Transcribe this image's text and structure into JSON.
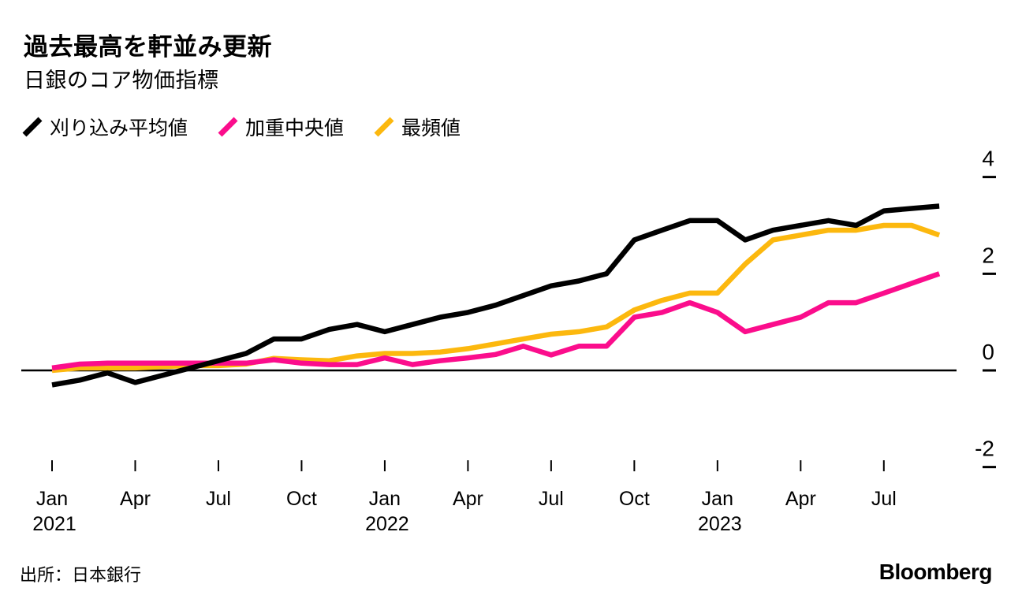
{
  "header": {
    "title": "過去最高を軒並み更新",
    "subtitle": "日銀のコア物価指標"
  },
  "legend": {
    "items": [
      {
        "key": "trimmed_mean",
        "label": "刈り込み平均値",
        "color": "#000000"
      },
      {
        "key": "weighted_median",
        "label": "加重中央値",
        "color": "#fb0d8c"
      },
      {
        "key": "mode",
        "label": "最頻値",
        "color": "#fcb80e"
      }
    ]
  },
  "footer": {
    "source": "出所：日本銀行",
    "brand": "Bloomberg"
  },
  "chart_data": {
    "type": "line",
    "title": "過去最高を軒並み更新",
    "subtitle": "日銀のコア物価指標",
    "x_unit": "month",
    "months": [
      "2021-01",
      "2021-02",
      "2021-03",
      "2021-04",
      "2021-05",
      "2021-06",
      "2021-07",
      "2021-08",
      "2021-09",
      "2021-10",
      "2021-11",
      "2021-12",
      "2022-01",
      "2022-02",
      "2022-03",
      "2022-04",
      "2022-05",
      "2022-06",
      "2022-07",
      "2022-08",
      "2022-09",
      "2022-10",
      "2022-11",
      "2022-12",
      "2023-01",
      "2023-02",
      "2023-03",
      "2023-04",
      "2023-05",
      "2023-06",
      "2023-07",
      "2023-08",
      "2023-09"
    ],
    "series": [
      {
        "key": "trimmed_mean",
        "name": "刈り込み平均値",
        "color": "#000000",
        "values": [
          -0.3,
          -0.2,
          -0.05,
          -0.25,
          -0.1,
          0.05,
          0.2,
          0.35,
          0.65,
          0.65,
          0.85,
          0.95,
          0.8,
          0.95,
          1.1,
          1.2,
          1.35,
          1.55,
          1.75,
          1.85,
          2.0,
          2.7,
          2.9,
          3.1,
          3.1,
          2.7,
          2.9,
          3.0,
          3.1,
          3.0,
          3.3,
          3.35,
          3.4
        ]
      },
      {
        "key": "weighted_median",
        "name": "加重中央値",
        "color": "#fb0d8c",
        "values": [
          0.05,
          0.13,
          0.15,
          0.15,
          0.15,
          0.15,
          0.15,
          0.15,
          0.22,
          0.15,
          0.12,
          0.12,
          0.26,
          0.12,
          0.2,
          0.26,
          0.33,
          0.5,
          0.32,
          0.5,
          0.5,
          1.1,
          1.2,
          1.4,
          1.2,
          0.8,
          0.95,
          1.1,
          1.4,
          1.4,
          1.6,
          1.8,
          2.0
        ]
      },
      {
        "key": "mode",
        "name": "最頻値",
        "color": "#fcb80e",
        "values": [
          0.0,
          0.05,
          0.05,
          0.05,
          0.08,
          0.1,
          0.1,
          0.13,
          0.25,
          0.22,
          0.2,
          0.3,
          0.35,
          0.35,
          0.38,
          0.45,
          0.55,
          0.65,
          0.75,
          0.8,
          0.9,
          1.25,
          1.45,
          1.6,
          1.6,
          2.2,
          2.7,
          2.8,
          2.9,
          2.9,
          3.0,
          3.0,
          2.8
        ]
      }
    ],
    "x_tick_labels": [
      "Jan",
      "Apr",
      "Jul",
      "Oct",
      "Jan",
      "Apr",
      "Jul",
      "Oct",
      "Jan",
      "Apr",
      "Jul"
    ],
    "x_tick_month_indices": [
      0,
      3,
      6,
      9,
      12,
      15,
      18,
      21,
      24,
      27,
      30
    ],
    "x_year_labels": [
      {
        "text": "2021",
        "tick_index": 0
      },
      {
        "text": "2022",
        "tick_index": 4
      },
      {
        "text": "2023",
        "tick_index": 8
      }
    ],
    "y_ticks": [
      4,
      2,
      0,
      -2
    ],
    "ylim": [
      -2.7,
      4.4
    ],
    "grid": "none",
    "zero_line": true,
    "legend_position": "top-left",
    "y_axis_side": "right"
  }
}
